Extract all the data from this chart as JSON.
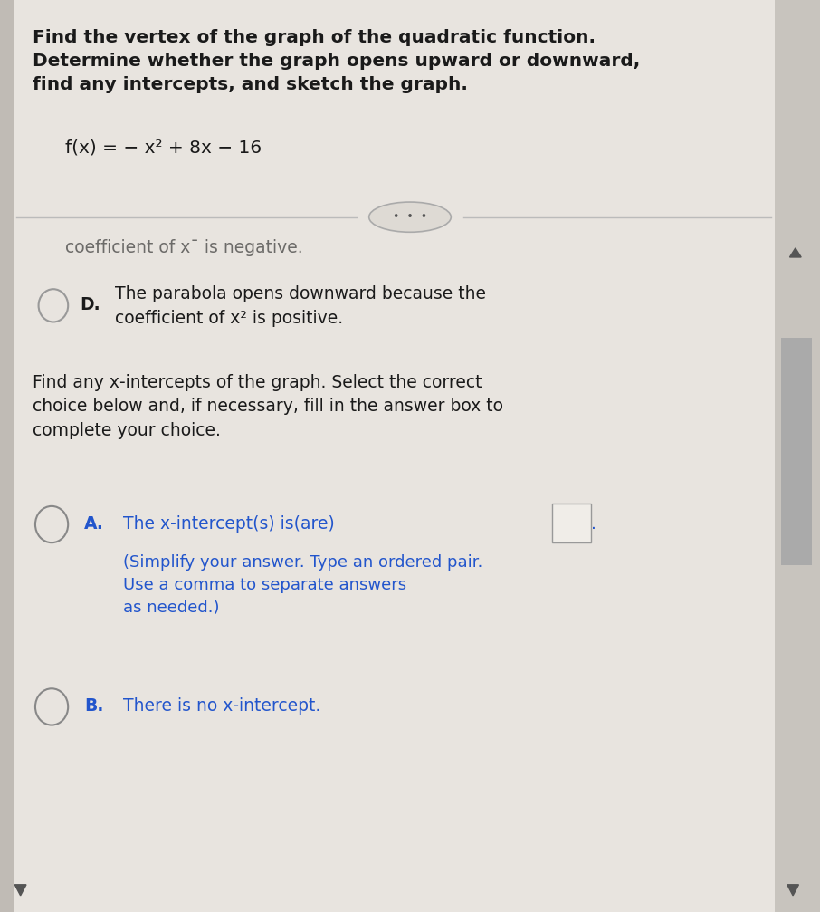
{
  "bg_color": "#d4d0cb",
  "panel_color": "#e8e4df",
  "title_text": "Find the vertex of the graph of the quadratic function.\nDetermine whether the graph opens upward or downward,\nfind any intercepts, and sketch the graph.",
  "function_text": "f(x) = − x² + 8x − 16",
  "divider_text": "•  •  •",
  "partial_text": "coefficient of x¯ is negative.",
  "option_D_label": "D.",
  "option_D_text": "The parabola opens downward because the\ncoefficient of x² is positive.",
  "find_intercepts_text": "Find any x-intercepts of the graph. Select the correct\nchoice below and, if necessary, fill in the answer box to\ncomplete your choice.",
  "option_A_label": "A.",
  "option_A_text": "The x-intercept(s) is(are)",
  "option_A_subtext": "(Simplify your answer. Type an ordered pair.\nUse a comma to separate answers\nas needed.)",
  "option_B_label": "B.",
  "option_B_text": "There is no x-intercept.",
  "text_color_dark": "#1a1a1a",
  "text_color_blue": "#2255cc",
  "circle_color": "#888888",
  "scrollbar_color": "#aaaaaa",
  "arrow_color": "#555555"
}
